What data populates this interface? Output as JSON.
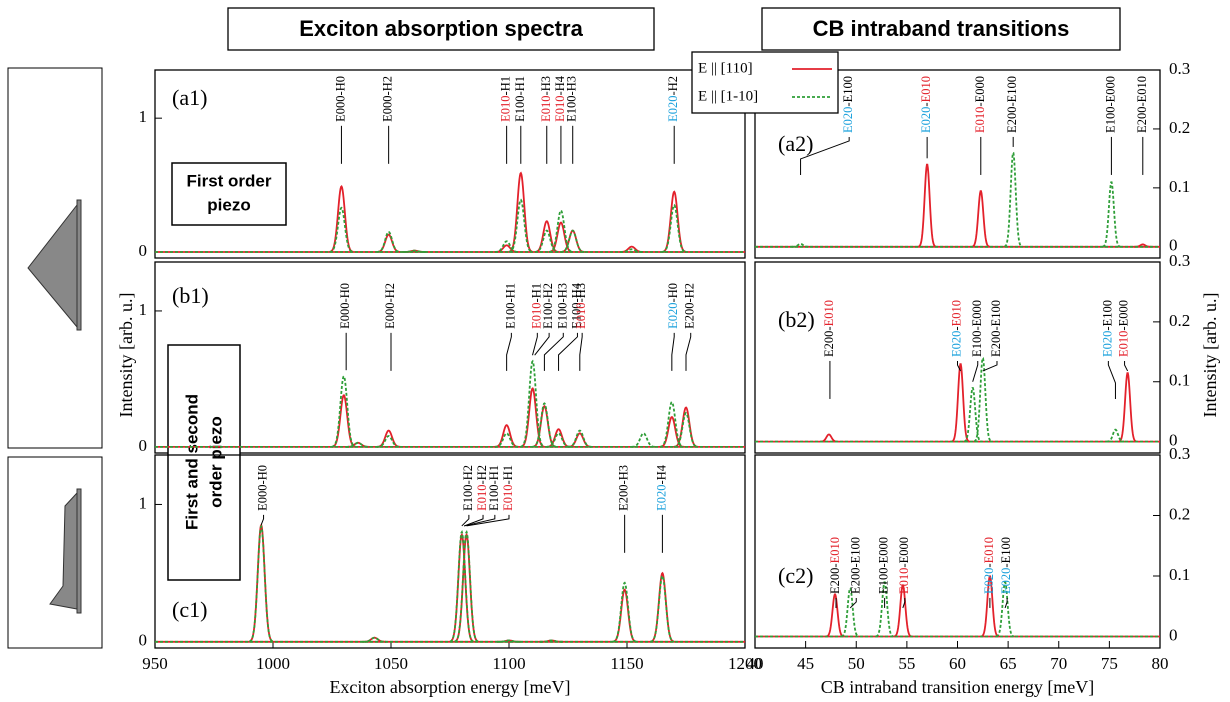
{
  "chart_data": [
    {
      "type": "peaks",
      "panel": "(a1)",
      "title": "Exciton absorption spectra",
      "note": [
        "First order",
        "piezo"
      ],
      "xlim": [
        950,
        1200
      ],
      "ylim": [
        -0.045,
        1.36
      ],
      "yticks": [
        0,
        1
      ],
      "y_side": "left",
      "series": [
        {
          "name": "E || [110]",
          "color": "#e3212b",
          "dash": false,
          "x": [
            1029,
            1049,
            1060,
            1099,
            1105,
            1116,
            1122,
            1127,
            1152,
            1170
          ],
          "values": [
            0.49,
            0.13,
            0.01,
            0.05,
            0.59,
            0.23,
            0.22,
            0.16,
            0.04,
            0.45
          ]
        },
        {
          "name": "E || [1-10]",
          "color": "#2f9e38",
          "dash": true,
          "x": [
            1029,
            1049,
            1060,
            1099,
            1105,
            1116,
            1122,
            1127,
            1152,
            1170
          ],
          "values": [
            0.33,
            0.15,
            0.01,
            0.08,
            0.39,
            0.16,
            0.31,
            0.16,
            0.02,
            0.35
          ]
        }
      ],
      "peak_labels": [
        {
          "x": 1029,
          "parts": [
            {
              "text": "E000-H0"
            }
          ]
        },
        {
          "x": 1049,
          "parts": [
            {
              "text": "E000-H2"
            }
          ]
        },
        {
          "x": 1099,
          "parts": [
            {
              "text": "E010",
              "color": "#e3212b"
            },
            {
              "text": "-H1"
            }
          ]
        },
        {
          "x": 1105,
          "parts": [
            {
              "text": "E100-H1"
            }
          ]
        },
        {
          "x": 1116,
          "parts": [
            {
              "text": "E010",
              "color": "#e3212b"
            },
            {
              "text": "-H3"
            }
          ]
        },
        {
          "x": 1122,
          "parts": [
            {
              "text": "E010",
              "color": "#e3212b"
            },
            {
              "text": "-H4"
            }
          ]
        },
        {
          "x": 1127,
          "parts": [
            {
              "text": "E100-H3"
            }
          ]
        },
        {
          "x": 1170,
          "parts": [
            {
              "text": "E020",
              "color": "#1ba1dc"
            },
            {
              "text": "-H2"
            }
          ]
        }
      ]
    },
    {
      "type": "peaks",
      "panel": "(a2)",
      "title": "CB intraband transitions",
      "ylabel": "Intensity [arb. u.]",
      "xlim": [
        40,
        80
      ],
      "ylim": [
        -0.019,
        0.3
      ],
      "yticks": [
        0,
        0.1,
        0.2,
        0.3
      ],
      "y_side": "right",
      "series": [
        {
          "color": "#e3212b",
          "dash": false,
          "x": [
            57,
            62.3,
            78.3
          ],
          "values": [
            0.14,
            0.095,
            0.004
          ]
        },
        {
          "color": "#2f9e38",
          "dash": true,
          "x": [
            44.5,
            65.5,
            75.2
          ],
          "values": [
            0.005,
            0.16,
            0.11
          ]
        }
      ],
      "peak_labels": [
        {
          "x": 49.3,
          "at": 44.5,
          "parts": [
            {
              "text": "E020",
              "color": "#1ba1dc"
            },
            {
              "text": "-E100"
            }
          ]
        },
        {
          "x": 57,
          "parts": [
            {
              "text": "E020",
              "color": "#1ba1dc"
            },
            {
              "text": "-"
            },
            {
              "text": "E010",
              "color": "#e3212b"
            }
          ]
        },
        {
          "x": 62.3,
          "parts": [
            {
              "text": "E010",
              "color": "#e3212b"
            },
            {
              "text": "-E000"
            }
          ]
        },
        {
          "x": 65.5,
          "parts": [
            {
              "text": "E200-E100"
            }
          ]
        },
        {
          "x": 75.2,
          "parts": [
            {
              "text": "E100-E000"
            }
          ]
        },
        {
          "x": 78.3,
          "parts": [
            {
              "text": "E200-E010"
            }
          ]
        }
      ]
    },
    {
      "type": "peaks",
      "panel": "(b1)",
      "ylabel": "Intensity [arb. u.]",
      "note": [
        "First and second",
        "order piezo"
      ],
      "xlim": [
        950,
        1200
      ],
      "ylim": [
        -0.045,
        1.36
      ],
      "yticks": [
        0,
        1
      ],
      "y_side": "left",
      "series": [
        {
          "color": "#e3212b",
          "dash": false,
          "x": [
            1030,
            1036,
            1049,
            1099,
            1110,
            1115,
            1121,
            1130,
            1169,
            1175
          ],
          "values": [
            0.38,
            0.03,
            0.12,
            0.16,
            0.43,
            0.3,
            0.13,
            0.1,
            0.22,
            0.29
          ]
        },
        {
          "color": "#2f9e38",
          "dash": true,
          "x": [
            1030,
            1036,
            1049,
            1099,
            1110,
            1115,
            1121,
            1130,
            1157,
            1169,
            1175
          ],
          "values": [
            0.52,
            0.03,
            0.08,
            0.1,
            0.63,
            0.32,
            0.1,
            0.12,
            0.1,
            0.33,
            0.25
          ]
        }
      ],
      "peak_labels": [
        {
          "x": 1031,
          "parts": [
            {
              "text": "E000-H0"
            }
          ]
        },
        {
          "x": 1050,
          "parts": [
            {
              "text": "E000-H2"
            }
          ]
        },
        {
          "x": 1101,
          "at": 1099,
          "parts": [
            {
              "text": "E100-H1"
            }
          ]
        },
        {
          "x": 1112,
          "at": 1110,
          "parts": [
            {
              "text": "E010",
              "color": "#e3212b"
            },
            {
              "text": "-H1"
            }
          ]
        },
        {
          "x": 1117,
          "at": 1111,
          "parts": [
            {
              "text": "E100-H2"
            }
          ]
        },
        {
          "x": 1123,
          "at": 1115,
          "parts": [
            {
              "text": "E100-H3"
            }
          ]
        },
        {
          "x": 1129,
          "at": 1121,
          "parts": [
            {
              "text": "E100-H4"
            }
          ]
        },
        {
          "x": 1131,
          "at": 1130,
          "parts": [
            {
              "text": "E010",
              "color": "#e3212b"
            },
            {
              "text": "-H3"
            }
          ]
        },
        {
          "x": 1170,
          "at": 1169,
          "parts": [
            {
              "text": "E020",
              "color": "#1ba1dc"
            },
            {
              "text": "-H0"
            }
          ]
        },
        {
          "x": 1177,
          "at": 1175,
          "parts": [
            {
              "text": "E200-H2"
            }
          ]
        }
      ]
    },
    {
      "type": "peaks",
      "panel": "(b2)",
      "xlim": [
        40,
        80
      ],
      "ylim": [
        -0.019,
        0.3
      ],
      "yticks": [
        0,
        0.1,
        0.2,
        0.3
      ],
      "y_side": "right",
      "series": [
        {
          "color": "#e3212b",
          "dash": false,
          "x": [
            47.3,
            60.3,
            76.8
          ],
          "values": [
            0.012,
            0.13,
            0.115
          ]
        },
        {
          "color": "#2f9e38",
          "dash": true,
          "x": [
            61.5,
            62.5,
            75.6
          ],
          "values": [
            0.09,
            0.14,
            0.02
          ]
        }
      ],
      "peak_labels": [
        {
          "x": 47.4,
          "parts": [
            {
              "text": "E200-"
            },
            {
              "text": "E010",
              "color": "#e3212b"
            }
          ]
        },
        {
          "x": 60,
          "at": 60.3,
          "parts": [
            {
              "text": "E020",
              "color": "#1ba1dc"
            },
            {
              "text": "-"
            },
            {
              "text": "E010",
              "color": "#e3212b"
            }
          ]
        },
        {
          "x": 62,
          "at": 61.5,
          "parts": [
            {
              "text": "E100-E000"
            }
          ]
        },
        {
          "x": 63.9,
          "at": 62.5,
          "parts": [
            {
              "text": "E200-E100"
            }
          ]
        },
        {
          "x": 74.9,
          "at": 75.6,
          "parts": [
            {
              "text": "E020",
              "color": "#1ba1dc"
            },
            {
              "text": "-E100"
            }
          ]
        },
        {
          "x": 76.5,
          "at": 76.8,
          "parts": [
            {
              "text": "E010",
              "color": "#e3212b"
            },
            {
              "text": "-E000"
            }
          ]
        }
      ]
    },
    {
      "type": "peaks",
      "panel": "(c1)",
      "xlabel": "Exciton absorption energy [meV]",
      "xlim": [
        950,
        1200
      ],
      "ylim": [
        -0.045,
        1.36
      ],
      "yticks": [
        0,
        1
      ],
      "y_side": "left",
      "xticks": [
        950,
        1000,
        1050,
        1100,
        1150,
        1200
      ],
      "series": [
        {
          "color": "#e3212b",
          "dash": false,
          "x": [
            995,
            1043,
            1080,
            1082,
            1100,
            1118,
            1149,
            1165
          ],
          "values": [
            0.85,
            0.03,
            0.78,
            0.78,
            0.01,
            0.01,
            0.38,
            0.5
          ]
        },
        {
          "color": "#2f9e38",
          "dash": true,
          "x": [
            995,
            1043,
            1080,
            1082,
            1100,
            1118,
            1149,
            1165
          ],
          "values": [
            0.84,
            0.03,
            0.8,
            0.8,
            0.01,
            0.01,
            0.43,
            0.48
          ]
        }
      ],
      "peak_labels": [
        {
          "x": 996,
          "at": 995,
          "parts": [
            {
              "text": "E000-H0"
            }
          ]
        },
        {
          "x": 1083,
          "at": 1080,
          "parts": [
            {
              "text": "E100-H2"
            }
          ]
        },
        {
          "x": 1089,
          "at": 1081,
          "parts": [
            {
              "text": "E010",
              "color": "#e3212b"
            },
            {
              "text": "-H2"
            }
          ]
        },
        {
          "x": 1094,
          "at": 1081,
          "parts": [
            {
              "text": "E100-H1"
            }
          ]
        },
        {
          "x": 1100,
          "at": 1082,
          "parts": [
            {
              "text": "E010",
              "color": "#e3212b"
            },
            {
              "text": "-H1"
            }
          ]
        },
        {
          "x": 1149,
          "parts": [
            {
              "text": "E200-H3"
            }
          ]
        },
        {
          "x": 1165,
          "parts": [
            {
              "text": "E020",
              "color": "#1ba1dc"
            },
            {
              "text": "-H4"
            }
          ]
        }
      ]
    },
    {
      "type": "peaks",
      "panel": "(c2)",
      "xlabel": "CB intraband transition energy [meV]",
      "xlim": [
        40,
        80
      ],
      "ylim": [
        -0.019,
        0.3
      ],
      "yticks": [
        0,
        0.1,
        0.2,
        0.3
      ],
      "y_side": "right",
      "xticks": [
        40,
        45,
        50,
        55,
        60,
        65,
        70,
        75,
        80
      ],
      "series": [
        {
          "color": "#e3212b",
          "dash": false,
          "x": [
            47.9,
            54.6,
            63.2
          ],
          "values": [
            0.07,
            0.085,
            0.1
          ]
        },
        {
          "color": "#2f9e38",
          "dash": true,
          "x": [
            49.4,
            52.8,
            64.7
          ],
          "values": [
            0.08,
            0.09,
            0.09
          ]
        }
      ],
      "peak_labels": [
        {
          "x": 48,
          "parts": [
            {
              "text": "E200-"
            },
            {
              "text": "E010",
              "color": "#e3212b"
            }
          ]
        },
        {
          "x": 50,
          "at": 49.4,
          "parts": [
            {
              "text": "E200-E100"
            }
          ]
        },
        {
          "x": 52.8,
          "parts": [
            {
              "text": "E100-E000"
            }
          ]
        },
        {
          "x": 54.8,
          "at": 54.6,
          "parts": [
            {
              "text": "E010",
              "color": "#e3212b"
            },
            {
              "text": "-E000"
            }
          ]
        },
        {
          "x": 63.2,
          "parts": [
            {
              "text": "E020",
              "color": "#1ba1dc"
            },
            {
              "text": "-"
            },
            {
              "text": "E010",
              "color": "#e3212b"
            }
          ]
        },
        {
          "x": 64.9,
          "at": 64.7,
          "parts": [
            {
              "text": "E020",
              "color": "#1ba1dc"
            },
            {
              "text": "-E100"
            }
          ]
        }
      ]
    }
  ]
}
